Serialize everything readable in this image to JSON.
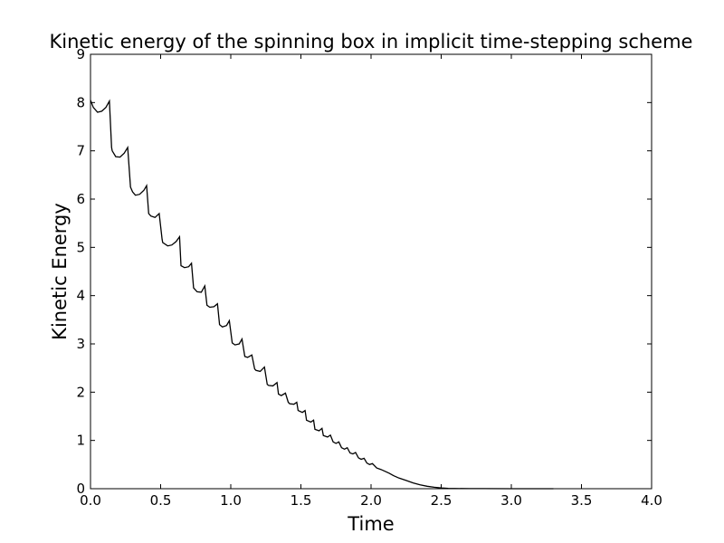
{
  "chart_data": {
    "type": "line",
    "title": "Kinetic energy of the spinning box in implicit time-stepping scheme",
    "xlabel": "Time",
    "ylabel": "Kinetic Energy",
    "xlim": [
      0.0,
      4.0
    ],
    "ylim": [
      0,
      9
    ],
    "xticks": [
      "0.0",
      "0.5",
      "1.0",
      "1.5",
      "2.0",
      "2.5",
      "3.0",
      "3.5",
      "4.0"
    ],
    "yticks": [
      "0",
      "1",
      "2",
      "3",
      "4",
      "5",
      "6",
      "7",
      "8",
      "9"
    ],
    "grid": false,
    "line_color": "#000000",
    "series": [
      {
        "x": [
          0.0,
          0.02,
          0.05,
          0.08,
          0.11,
          0.135,
          0.15,
          0.155,
          0.18,
          0.21,
          0.24,
          0.265,
          0.285,
          0.3,
          0.32,
          0.35,
          0.38,
          0.4,
          0.415,
          0.43,
          0.46,
          0.49,
          0.51,
          0.515,
          0.55,
          0.58,
          0.61,
          0.635,
          0.645,
          0.67,
          0.7,
          0.72,
          0.735,
          0.76,
          0.79,
          0.815,
          0.83,
          0.85,
          0.88,
          0.905,
          0.92,
          0.94,
          0.97,
          0.99,
          1.01,
          1.03,
          1.06,
          1.08,
          1.1,
          1.12,
          1.15,
          1.17,
          1.18,
          1.21,
          1.24,
          1.26,
          1.27,
          1.3,
          1.33,
          1.34,
          1.36,
          1.39,
          1.41,
          1.42,
          1.45,
          1.47,
          1.48,
          1.51,
          1.53,
          1.54,
          1.57,
          1.59,
          1.6,
          1.63,
          1.65,
          1.66,
          1.69,
          1.71,
          1.73,
          1.75,
          1.77,
          1.79,
          1.81,
          1.83,
          1.85,
          1.87,
          1.89,
          1.91,
          1.93,
          1.95,
          1.97,
          1.99,
          2.01,
          2.04,
          2.07,
          2.1,
          2.13,
          2.16,
          2.2,
          2.25,
          2.3,
          2.35,
          2.4,
          2.45,
          2.5,
          2.55,
          2.6,
          2.7,
          2.8,
          3.0,
          3.2,
          3.3
        ],
        "y": [
          8.05,
          7.9,
          7.8,
          7.82,
          7.9,
          8.03,
          7.07,
          7.0,
          6.88,
          6.87,
          6.95,
          7.07,
          6.25,
          6.15,
          6.08,
          6.1,
          6.18,
          6.28,
          5.7,
          5.65,
          5.62,
          5.7,
          5.17,
          5.1,
          5.03,
          5.05,
          5.12,
          5.22,
          4.62,
          4.58,
          4.6,
          4.67,
          4.16,
          4.08,
          4.07,
          4.2,
          3.8,
          3.76,
          3.77,
          3.83,
          3.4,
          3.35,
          3.38,
          3.48,
          3.02,
          2.98,
          3.0,
          3.1,
          2.74,
          2.72,
          2.77,
          2.48,
          2.45,
          2.43,
          2.52,
          2.16,
          2.14,
          2.13,
          2.2,
          1.96,
          1.93,
          1.98,
          1.79,
          1.76,
          1.75,
          1.79,
          1.62,
          1.58,
          1.62,
          1.42,
          1.38,
          1.42,
          1.23,
          1.2,
          1.25,
          1.1,
          1.07,
          1.11,
          0.97,
          0.94,
          0.97,
          0.85,
          0.82,
          0.85,
          0.74,
          0.72,
          0.75,
          0.64,
          0.61,
          0.63,
          0.53,
          0.5,
          0.52,
          0.43,
          0.4,
          0.36,
          0.32,
          0.27,
          0.22,
          0.17,
          0.12,
          0.08,
          0.05,
          0.03,
          0.015,
          0.008,
          0.004,
          0.002,
          0.001,
          0.0,
          0.0,
          0.0
        ]
      }
    ]
  }
}
